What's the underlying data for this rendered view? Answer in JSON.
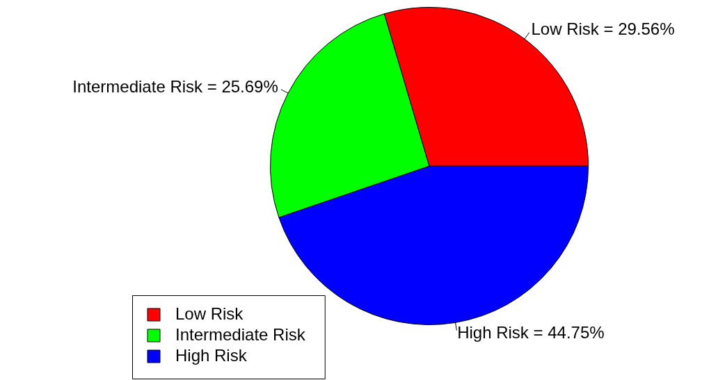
{
  "chart_data": {
    "type": "pie",
    "categories": [
      "Low Risk",
      "Intermediate Risk",
      "High Risk"
    ],
    "values": [
      29.56,
      25.69,
      44.75
    ],
    "colors": [
      "#ff0000",
      "#00ff00",
      "#0000ff"
    ],
    "value_labels": [
      "Low Risk = 29.56%",
      "Intermediate Risk = 25.69%",
      "High Risk = 44.75%"
    ],
    "legend": "bottom left"
  }
}
